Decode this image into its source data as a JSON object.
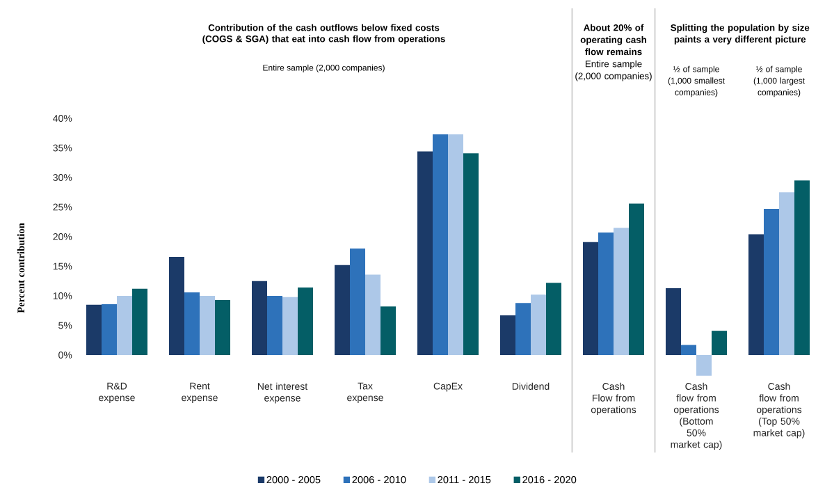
{
  "chart_data": {
    "type": "bar",
    "title": "Contribution of the cash outflows below fixed costs (COGS & SGA) that eat into cash flow from operations",
    "subtitle": "Entire sample (2,000 companies)",
    "ylabel": "Percent contribution",
    "annotations": [
      "**About 20% of operating cash flow remains** Entire sample (2,000 companies)",
      "Splitting the population by size paints a very different picture",
      "½ of sample (1,000 smallest companies)",
      "½ of sample (1,000 largest companies)"
    ],
    "categories": [
      "R&D expense",
      "Rent expense",
      "Net interest expense",
      "Tax expense",
      "CapEx",
      "Dividend",
      "Cash Flow from operations",
      "Cash flow from operations (Bottom 50% market cap)",
      "Cash flow from operations (Top 50% market cap)"
    ],
    "series": [
      {
        "name": "2000 - 2005",
        "color": "#1b3a68",
        "values": [
          8.5,
          16.6,
          12.5,
          15.2,
          34.4,
          6.7,
          19.1,
          11.3,
          20.4
        ]
      },
      {
        "name": "2006 - 2010",
        "color": "#2e72ba",
        "values": [
          8.6,
          10.6,
          10.0,
          18.0,
          37.3,
          8.8,
          20.7,
          1.7,
          24.7
        ]
      },
      {
        "name": "2011 - 2015",
        "color": "#adc8e8",
        "values": [
          10.0,
          10.0,
          9.8,
          13.6,
          37.3,
          10.2,
          21.5,
          -3.5,
          27.5
        ]
      },
      {
        "name": "2016 - 2020",
        "color": "#045e66",
        "values": [
          11.2,
          9.3,
          11.4,
          8.2,
          34.1,
          12.2,
          25.6,
          4.1,
          29.5
        ]
      }
    ],
    "ylim": [
      -3.5,
      40
    ],
    "yticks": [
      {
        "value": 0,
        "label": "0%"
      },
      {
        "value": 5,
        "label": "5%"
      },
      {
        "value": 10,
        "label": "10%"
      },
      {
        "value": 15,
        "label": "15%"
      },
      {
        "value": 20,
        "label": "20%"
      },
      {
        "value": 25,
        "label": "25%"
      },
      {
        "value": 30,
        "label": "30%"
      },
      {
        "value": 35,
        "label": "35%"
      },
      {
        "value": 40,
        "label": "40%"
      }
    ],
    "grid": false,
    "legend": "bottom"
  }
}
